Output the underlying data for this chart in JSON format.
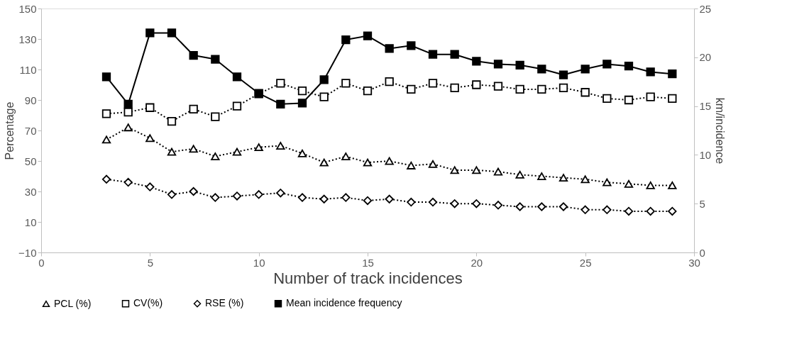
{
  "chart_data": {
    "type": "line",
    "xlabel": "Number of track incidences",
    "ylabel": "Percentage",
    "y2label": "km/incidence",
    "x": [
      3,
      4,
      5,
      6,
      7,
      8,
      9,
      10,
      11,
      12,
      13,
      14,
      15,
      16,
      17,
      18,
      19,
      20,
      21,
      22,
      23,
      24,
      25,
      26,
      27,
      28,
      29
    ],
    "xlim": [
      0,
      30
    ],
    "xticks": [
      0,
      5,
      10,
      15,
      20,
      25,
      30
    ],
    "ylim": [
      -10,
      150
    ],
    "yticks": [
      -10,
      10,
      30,
      50,
      70,
      90,
      110,
      130,
      150
    ],
    "y2lim": [
      0,
      25
    ],
    "y2ticks": [
      0,
      5,
      10,
      15,
      20,
      25
    ],
    "grid": false,
    "legend": "bottom",
    "series": [
      {
        "name": "PCL (%)",
        "color": "#000000",
        "marker": "triangle",
        "line_style": "dotted",
        "values": [
          64,
          72,
          65,
          56,
          58,
          53,
          56,
          59,
          60,
          55,
          49,
          53,
          49,
          50,
          47,
          48,
          44,
          44,
          43,
          41,
          40,
          39,
          38,
          36,
          35,
          34,
          34
        ]
      },
      {
        "name": "CV(%)",
        "color": "#000000",
        "marker": "square",
        "line_style": "dotted",
        "values": [
          81,
          82,
          85,
          76,
          84,
          79,
          86,
          94,
          101,
          96,
          92,
          101,
          96,
          102,
          97,
          101,
          98,
          100,
          99,
          97,
          97,
          98,
          95,
          91,
          90,
          92,
          91
        ]
      },
      {
        "name": "RSE (%)",
        "color": "#000000",
        "marker": "diamond",
        "line_style": "dotted",
        "values": [
          38,
          36,
          33,
          28,
          30,
          26,
          27,
          28,
          29,
          26,
          25,
          26,
          24,
          25,
          23,
          23,
          22,
          22,
          21,
          20,
          20,
          20,
          18,
          18,
          17,
          17,
          17
        ]
      },
      {
        "name": "Mean incidence frequency",
        "color": "#000000",
        "marker": "square",
        "line_style": "solid",
        "axis": "y2",
        "values": [
          18,
          15.2,
          22.5,
          22.5,
          20.2,
          19.8,
          18,
          16.3,
          15.2,
          15.3,
          17.7,
          21.8,
          22.2,
          20.9,
          21.2,
          20.3,
          20.3,
          19.6,
          19.3,
          19.2,
          18.8,
          18.2,
          18.8,
          19.3,
          19.1,
          18.5,
          18.3
        ]
      }
    ]
  }
}
